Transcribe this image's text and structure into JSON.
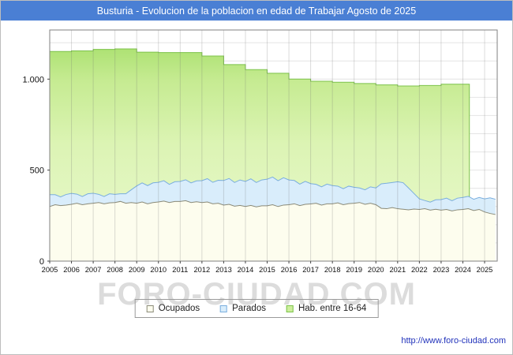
{
  "header": {
    "title": "Busturia - Evolucion de la poblacion en edad de Trabajar Agosto de 2025",
    "bg_color": "#4a7fd4",
    "text_color": "#ffffff"
  },
  "watermark_text": "FORO-CIUDAD.COM",
  "footer": {
    "url": "http://www.foro-ciudad.com"
  },
  "legend": {
    "items": [
      {
        "label": "Ocupados",
        "fill": "#fdfdee",
        "border": "#8a8a78"
      },
      {
        "label": "Parados",
        "fill": "#d9edfb",
        "border": "#7aaede"
      },
      {
        "label": "Hab. entre 16-64",
        "fill": "#cdef9d",
        "border": "#7cc24a"
      }
    ]
  },
  "chart_data": {
    "type": "area",
    "title": "Busturia - Evolucion de la poblacion en edad de Trabajar Agosto de 2025",
    "xlabel": "",
    "ylabel": "",
    "xlim": [
      2005,
      2025.58
    ],
    "ylim": [
      0,
      1270
    ],
    "grid": true,
    "legend_position": "bottom",
    "y_ticks": [
      {
        "value": 0,
        "label": "0"
      },
      {
        "value": 500,
        "label": "500"
      },
      {
        "value": 1000,
        "label": "1.000"
      }
    ],
    "x_tick_years": [
      2005,
      2006,
      2007,
      2008,
      2009,
      2010,
      2011,
      2012,
      2013,
      2014,
      2015,
      2016,
      2017,
      2018,
      2019,
      2020,
      2021,
      2022,
      2023,
      2024,
      2025
    ],
    "x_start": 2005,
    "x_step": 0.25,
    "series_note": "Parados area is stacked on top of Ocupados (blue top line = Ocupados + Parados); Hab. entre 16-64 is annual step data ending early 2024",
    "ocupados": [
      300,
      310,
      305,
      308,
      312,
      318,
      310,
      315,
      318,
      322,
      315,
      320,
      322,
      328,
      318,
      322,
      318,
      325,
      315,
      322,
      325,
      330,
      322,
      328,
      328,
      332,
      322,
      326,
      322,
      325,
      315,
      318,
      308,
      312,
      302,
      306,
      300,
      306,
      298,
      304,
      304,
      310,
      300,
      308,
      310,
      315,
      305,
      312,
      314,
      318,
      308,
      315,
      315,
      320,
      310,
      316,
      318,
      322,
      312,
      318,
      310,
      290,
      288,
      294,
      288,
      285,
      282,
      286,
      284,
      288,
      280,
      285,
      280,
      284,
      276,
      282,
      284,
      288,
      278,
      284,
      270,
      262,
      256
    ],
    "parados": [
      65,
      55,
      48,
      58,
      60,
      50,
      45,
      55,
      55,
      45,
      40,
      50,
      45,
      42,
      52,
      70,
      95,
      105,
      100,
      108,
      108,
      112,
      100,
      108,
      110,
      115,
      108,
      115,
      120,
      128,
      118,
      126,
      135,
      142,
      130,
      140,
      138,
      146,
      134,
      142,
      146,
      152,
      142,
      150,
      136,
      128,
      118,
      126,
      112,
      104,
      100,
      108,
      100,
      92,
      88,
      96,
      88,
      80,
      80,
      90,
      92,
      135,
      140,
      138,
      148,
      146,
      120,
      86,
      58,
      45,
      44,
      52,
      58,
      62,
      56,
      64,
      66,
      68,
      62,
      66,
      72,
      86,
      84
    ],
    "hab_16_64": {
      "years": [
        2005,
        2006,
        2007,
        2008,
        2009,
        2010,
        2011,
        2012,
        2013,
        2014,
        2015,
        2016,
        2017,
        2018,
        2019,
        2020,
        2021,
        2022,
        2023,
        2024
      ],
      "values": [
        1152,
        1155,
        1163,
        1166,
        1148,
        1146,
        1146,
        1127,
        1080,
        1052,
        1032,
        1000,
        988,
        983,
        976,
        968,
        962,
        965,
        972,
        972
      ],
      "last_x": 2024.3
    },
    "colors": {
      "ocupados_fill": "#fdfdee",
      "ocupados_stroke": "#8a8a78",
      "parados_fill": "#d9edfb",
      "parados_stroke": "#7aaede",
      "hab_stroke": "#7cc24a",
      "hab_gradient": [
        {
          "offset": "0%",
          "color": "#aee274"
        },
        {
          "offset": "15%",
          "color": "#c6eb92"
        },
        {
          "offset": "45%",
          "color": "#dcf4b4"
        },
        {
          "offset": "100%",
          "color": "#eaf9d0"
        }
      ],
      "grid_h": "#e4e4e4",
      "grid_v": "rgba(110,110,110,0.25)",
      "axis_border": "#808080",
      "tick_text": "#111111"
    }
  }
}
